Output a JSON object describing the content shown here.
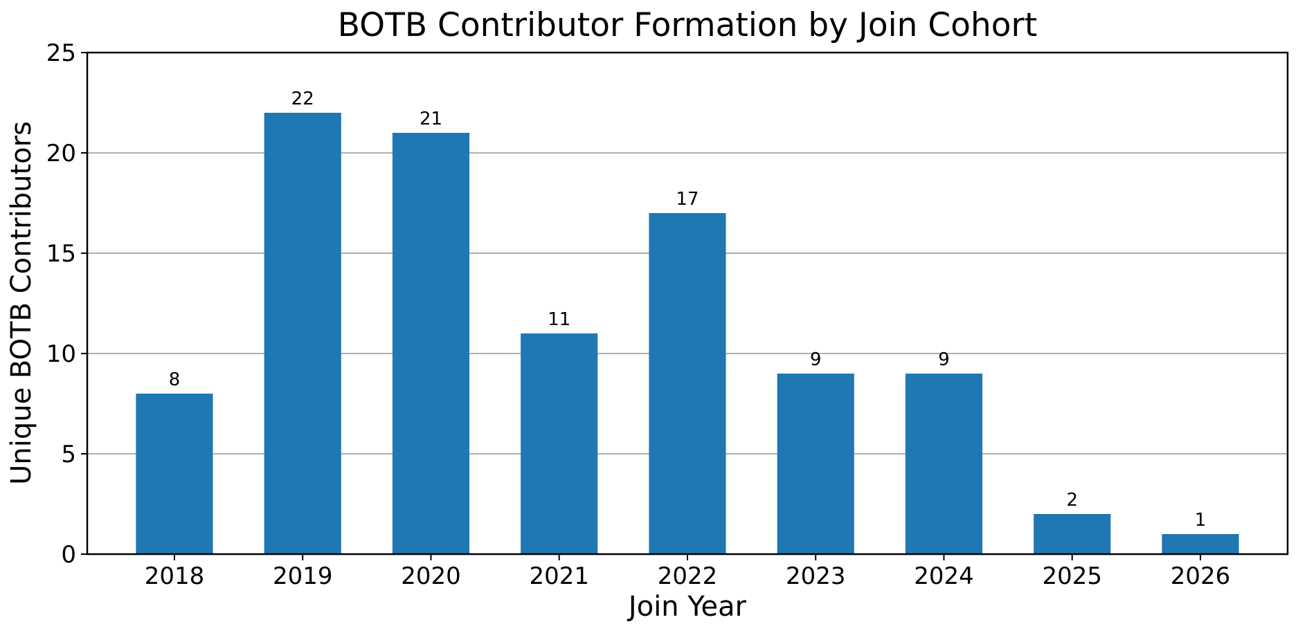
{
  "chart_data": {
    "type": "bar",
    "title": "BOTB Contributor Formation by Join Cohort",
    "xlabel": "Join Year",
    "ylabel": "Unique BOTB Contributors",
    "categories": [
      "2018",
      "2019",
      "2020",
      "2021",
      "2022",
      "2023",
      "2024",
      "2025",
      "2026"
    ],
    "values": [
      8,
      22,
      21,
      11,
      17,
      9,
      9,
      2,
      1
    ],
    "ylim": [
      0,
      25
    ],
    "yticks": [
      0,
      5,
      10,
      15,
      20,
      25
    ],
    "grid": "horizontal",
    "bar_color": "#1f77b4",
    "data_labels": true
  }
}
